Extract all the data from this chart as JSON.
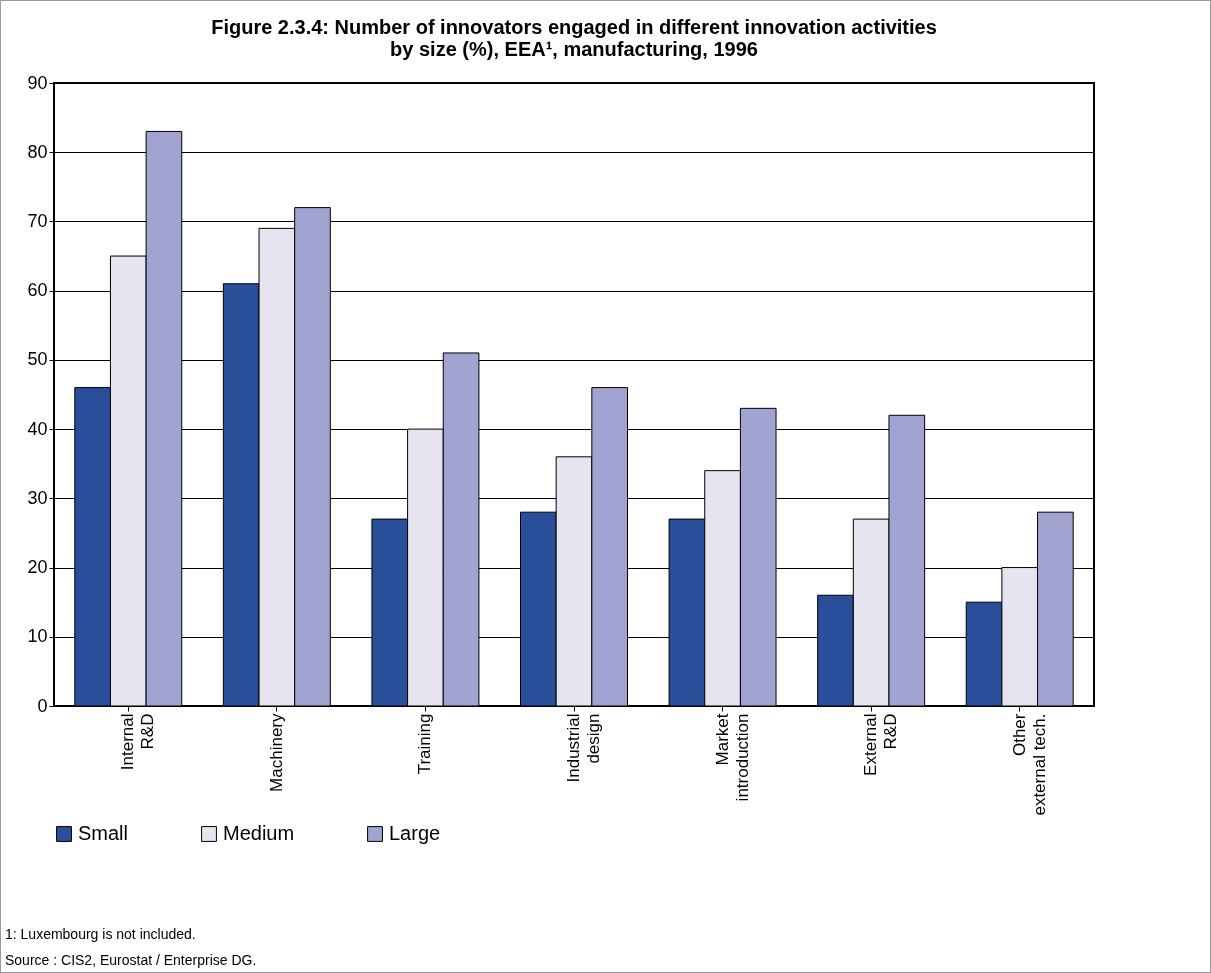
{
  "chart_data": {
    "type": "bar",
    "title": "Figure 2.3.4: Number of innovators engaged in different innovation activities\nby size (%), EEA¹, manufacturing, 1996",
    "categories": [
      "Internal\nR&D",
      "Machinery",
      "Training",
      "Industrial\ndesign",
      "Market\nintroduction",
      "External\nR&D",
      "Other\nexternal tech."
    ],
    "series": [
      {
        "name": "Small",
        "color": "#2a4f9a",
        "values": [
          46,
          61,
          27,
          28,
          27,
          16,
          15
        ]
      },
      {
        "name": "Medium",
        "color": "#e6e4f0",
        "values": [
          65,
          69,
          40,
          36,
          34,
          27,
          20
        ]
      },
      {
        "name": "Large",
        "color": "#a1a3d0",
        "values": [
          83,
          72,
          51,
          46,
          43,
          42,
          28
        ]
      }
    ],
    "ylim": [
      0,
      90
    ],
    "yticks": [
      0,
      10,
      20,
      30,
      40,
      50,
      60,
      70,
      80,
      90
    ],
    "grid": "y",
    "legend": "bottom",
    "annotations": [
      "1: Luxembourg is not included.",
      "Source : CIS2, Eurostat / Enterprise DG."
    ]
  }
}
